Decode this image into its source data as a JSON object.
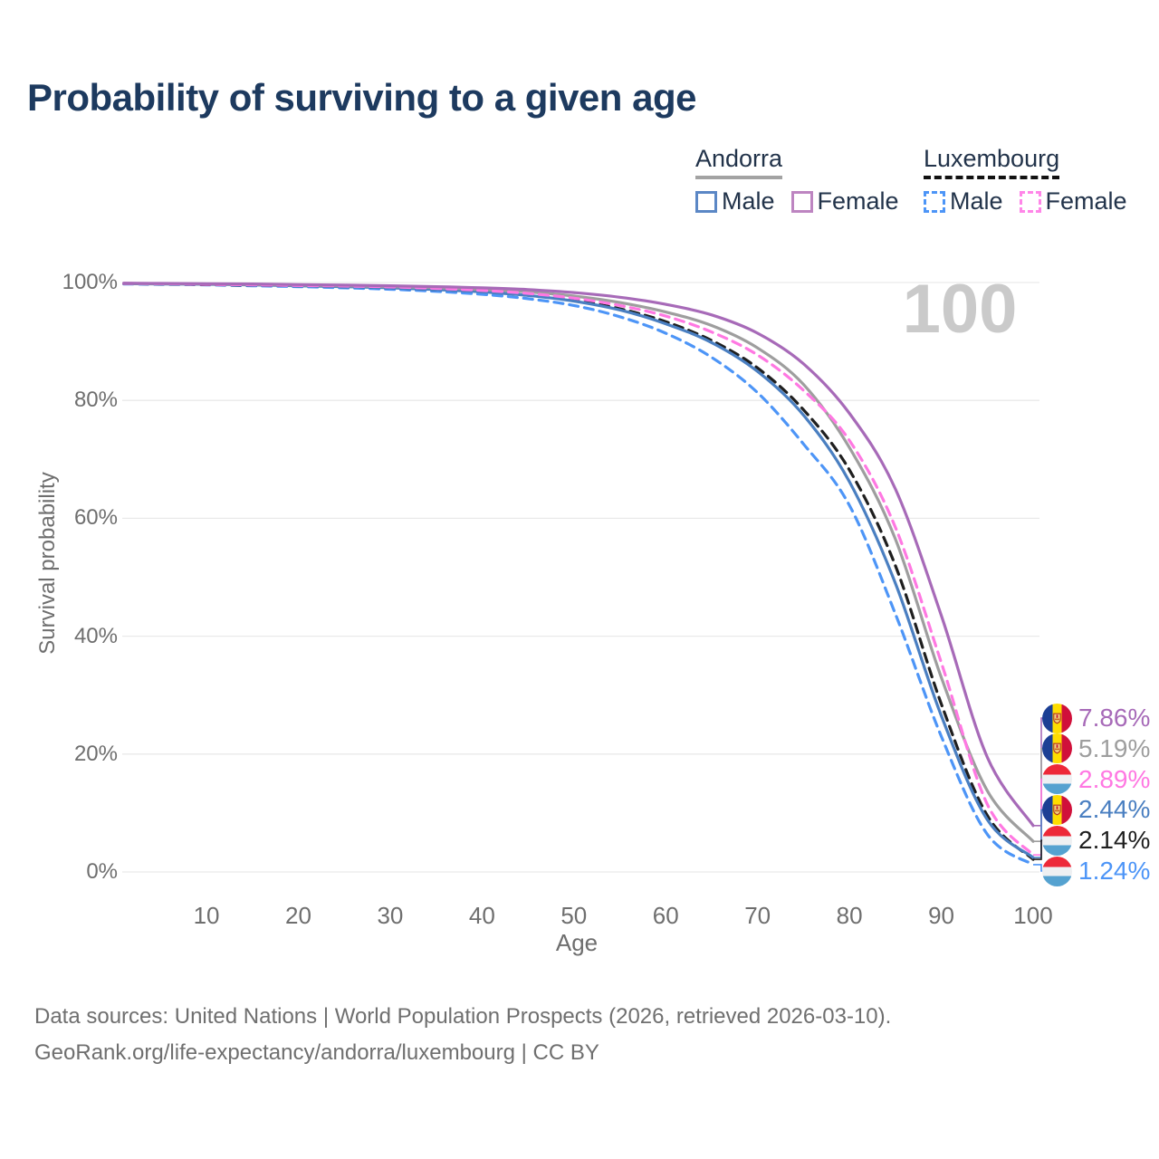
{
  "header": {
    "title": "Probability of surviving to a given age"
  },
  "legend": {
    "groups": [
      {
        "name": "Andorra",
        "underline": "solid",
        "underline_color": "#a3a3a3",
        "items": [
          {
            "label": "Male",
            "color": "#5b87c5",
            "dash": false
          },
          {
            "label": "Female",
            "color": "#bd85c1",
            "dash": false
          }
        ]
      },
      {
        "name": "Luxembourg",
        "underline": "dashed",
        "underline_color": "#111111",
        "items": [
          {
            "label": "Male",
            "color": "#4d95f7",
            "dash": true
          },
          {
            "label": "Female",
            "color": "#ff86e8",
            "dash": true
          }
        ]
      }
    ]
  },
  "chart_data": {
    "type": "line",
    "title": "Probability of surviving to a given age",
    "xlabel": "Age",
    "ylabel": "Survival probability",
    "xlim": [
      1,
      100
    ],
    "ylim": [
      0,
      100
    ],
    "x_ticks": [
      10,
      20,
      30,
      40,
      50,
      60,
      70,
      80,
      90,
      100
    ],
    "y_ticks": [
      0,
      20,
      40,
      60,
      80,
      100
    ],
    "grid": "horizontal",
    "legend_position": "top-right",
    "watermark": "100",
    "x": [
      1,
      5,
      10,
      15,
      20,
      25,
      30,
      35,
      40,
      45,
      50,
      55,
      60,
      65,
      70,
      75,
      80,
      85,
      90,
      95,
      100
    ],
    "series": [
      {
        "name": "Andorra Female",
        "country": "andorra",
        "sex": "female",
        "color": "#a76ab8",
        "dash": "solid",
        "end_label": "7.86%",
        "values": [
          99.9,
          99.85,
          99.8,
          99.75,
          99.65,
          99.55,
          99.45,
          99.3,
          99.1,
          98.8,
          98.3,
          97.5,
          96.3,
          94.5,
          91.4,
          86.2,
          77.8,
          65.0,
          43.5,
          19.5,
          7.86
        ]
      },
      {
        "name": "Andorra Total",
        "country": "andorra",
        "sex": "total",
        "color": "#9e9e9e",
        "dash": "solid",
        "end_label": "5.19%",
        "values": [
          99.85,
          99.8,
          99.75,
          99.65,
          99.55,
          99.45,
          99.3,
          99.1,
          98.8,
          98.4,
          97.7,
          96.6,
          95.0,
          92.7,
          88.9,
          82.7,
          72.0,
          56.5,
          33.0,
          13.8,
          5.19
        ]
      },
      {
        "name": "Luxembourg Female",
        "country": "luxembourg",
        "sex": "female",
        "color": "#ff78e2",
        "dash": "dashed",
        "end_label": "2.89%",
        "values": [
          99.85,
          99.8,
          99.7,
          99.6,
          99.5,
          99.4,
          99.25,
          99.0,
          98.65,
          98.15,
          97.35,
          96.1,
          94.3,
          91.6,
          87.7,
          81.7,
          73.2,
          58.5,
          35.5,
          11.5,
          2.89
        ]
      },
      {
        "name": "Andorra Male",
        "country": "andorra",
        "sex": "male",
        "color": "#4a7fc1",
        "dash": "solid",
        "end_label": "2.44%",
        "values": [
          99.8,
          99.75,
          99.7,
          99.6,
          99.45,
          99.3,
          99.1,
          98.8,
          98.4,
          97.8,
          96.85,
          95.35,
          93.0,
          89.8,
          84.9,
          77.5,
          66.2,
          49.0,
          26.5,
          8.9,
          2.44
        ]
      },
      {
        "name": "Luxembourg Total",
        "country": "luxembourg",
        "sex": "total",
        "color": "#1f1f1f",
        "dash": "dashed",
        "end_label": "2.14%",
        "values": [
          99.8,
          99.75,
          99.65,
          99.55,
          99.45,
          99.3,
          99.1,
          98.8,
          98.45,
          97.85,
          96.95,
          95.55,
          93.35,
          90.15,
          85.5,
          78.4,
          68.2,
          52.0,
          28.5,
          9.6,
          2.14
        ]
      },
      {
        "name": "Luxembourg Male",
        "country": "luxembourg",
        "sex": "male",
        "color": "#4d95f7",
        "dash": "dashed",
        "end_label": "1.24%",
        "values": [
          99.75,
          99.7,
          99.6,
          99.45,
          99.3,
          99.1,
          98.85,
          98.5,
          98.0,
          97.25,
          96.1,
          94.2,
          91.4,
          87.3,
          81.3,
          72.6,
          62.2,
          43.8,
          23.0,
          6.4,
          1.24
        ]
      }
    ]
  },
  "footer": {
    "line1": "Data sources: United Nations | World Population Prospects (2026, retrieved 2026-03-10).",
    "line2": "GeoRank.org/life-expectancy/andorra/luxembourg | CC BY"
  }
}
